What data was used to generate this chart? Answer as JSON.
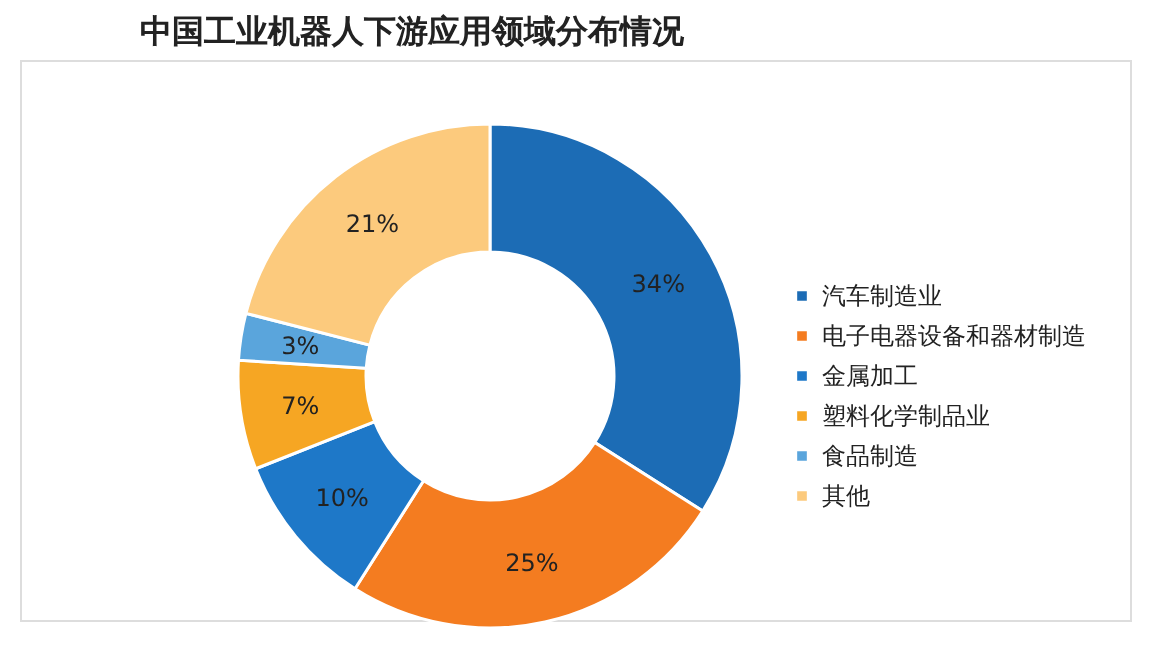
{
  "chart_data": {
    "type": "donut",
    "title": "中国工业机器人下游应用领域分布情况",
    "categories": [
      "汽车制造业",
      "电子电器设备和器材制造",
      "金属加工",
      "塑料化学制品业",
      "食品制造",
      "其他"
    ],
    "values": [
      34,
      25,
      10,
      7,
      3,
      21
    ],
    "value_labels": [
      "34%",
      "25%",
      "10%",
      "7%",
      "3%",
      "21%"
    ],
    "colors": [
      "#1c6cb5",
      "#f47c20",
      "#1e78c8",
      "#f6a623",
      "#5aa5dc",
      "#fcca7d"
    ],
    "legend": "right"
  }
}
